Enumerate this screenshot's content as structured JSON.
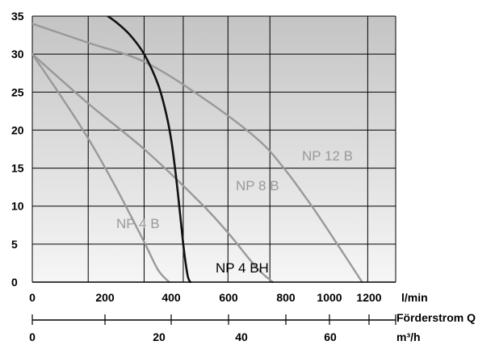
{
  "chart_data": {
    "type": "line",
    "ylim": [
      0,
      35
    ],
    "xlim": [
      0,
      1300
    ],
    "y_ticks": [
      "0",
      "5",
      "10",
      "15",
      "20",
      "25",
      "30",
      "35"
    ],
    "x_ticks_lmin": [
      "0",
      "200",
      "400",
      "600",
      "800",
      "1000",
      "1200"
    ],
    "x_ticks_m3h": [
      "0",
      "20",
      "40",
      "60"
    ],
    "x_unit_lmin": "l/min",
    "x_axis_label": "Förderstrom Q",
    "x_unit_m3h": "m³/h",
    "grid": true,
    "colors": {
      "grid": "#000000",
      "gray_curve": "#999999",
      "black_curve": "#111111",
      "bg_top": "#c4c4c4",
      "bg_bottom": "#f6f6f6"
    },
    "series": [
      {
        "name": "NP 4 B",
        "color": "#999999",
        "x": [
          0,
          100,
          200,
          300,
          400,
          450,
          490
        ],
        "y": [
          30,
          24.6,
          18.9,
          12.4,
          5.3,
          1.6,
          0
        ]
      },
      {
        "name": "NP 8 B",
        "color": "#999999",
        "x": [
          0,
          200,
          400,
          600,
          700,
          800,
          860
        ],
        "y": [
          30,
          23.5,
          17.5,
          10.5,
          6.5,
          2,
          0
        ]
      },
      {
        "name": "NP 12 B",
        "color": "#999999",
        "x": [
          0,
          200,
          400,
          600,
          800,
          900,
          1000,
          1100,
          1180
        ],
        "y": [
          34,
          31.5,
          29,
          24.5,
          19,
          15,
          10,
          4.5,
          0
        ]
      },
      {
        "name": "NP 4 BH",
        "color": "#111111",
        "x": [
          250,
          300,
          350,
          400,
          450,
          480,
          500,
          520,
          540,
          555,
          565
        ],
        "y": [
          35.5,
          34.2,
          32.5,
          30,
          26,
          22,
          18,
          12,
          5,
          1,
          0
        ]
      }
    ]
  }
}
